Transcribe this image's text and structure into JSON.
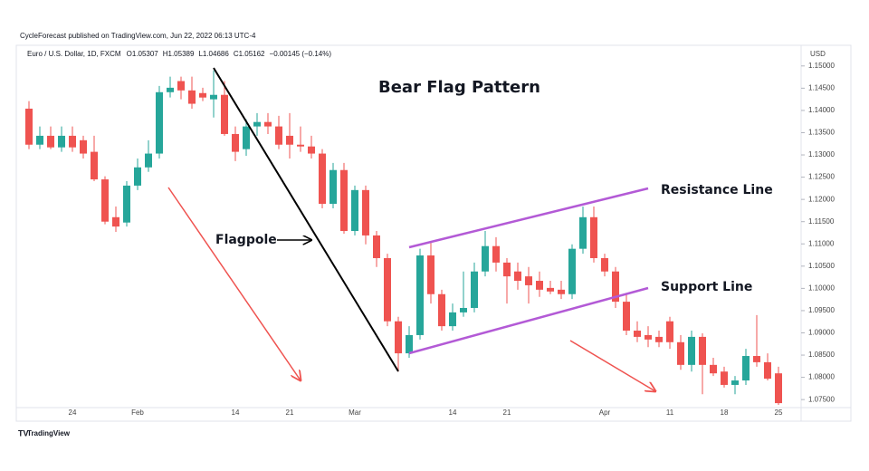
{
  "chart_data": {
    "type": "candlestick",
    "header": "CycleForecast published on TradingView.com, Jun 22, 2022 06:13 UTC-4",
    "symbol": "Euro / U.S. Dollar, 1D, FXCM",
    "ohlc_info": [
      "O1.05307",
      "H1.05389",
      "L1.04686",
      "C1.05162",
      "−0.00145 (−0.14%)"
    ],
    "currency": "USD",
    "title": "Bear Flag Pattern",
    "annotations": [
      "Flagpole",
      "Resistance Line",
      "Support Line"
    ],
    "footer": "TradingView",
    "up_color": "#26a69a",
    "down_color": "#ef5350",
    "grid": false,
    "categories": [
      null,
      null,
      null,
      null,
      "24",
      null,
      null,
      null,
      null,
      null,
      "Feb",
      null,
      null,
      null,
      null,
      null,
      null,
      null,
      null,
      "14",
      null,
      null,
      null,
      null,
      "21",
      null,
      null,
      null,
      null,
      null,
      "Mar",
      null,
      null,
      null,
      null,
      null,
      null,
      null,
      null,
      "14",
      null,
      null,
      null,
      null,
      "21",
      null,
      null,
      null,
      null,
      null,
      null,
      null,
      null,
      "Apr",
      null,
      null,
      null,
      null,
      null,
      "11",
      null,
      null,
      null,
      null,
      "18",
      null,
      null,
      null,
      null,
      "25"
    ],
    "open": [
      1.1404,
      1.1323,
      1.1343,
      1.1317,
      1.1343,
      1.1333,
      1.1307,
      1.1245,
      1.116,
      1.1148,
      1.1231,
      1.1272,
      1.1303,
      1.1441,
      1.1466,
      1.1445,
      1.1439,
      1.1425,
      1.1435,
      1.1347,
      1.1313,
      1.1364,
      1.1374,
      1.1364,
      1.1343,
      1.1323,
      1.1319,
      1.1303,
      1.119,
      1.1266,
      1.1129,
      1.1221,
      1.1119,
      1.1068,
      1.0926,
      1.0854,
      1.0895,
      1.1074,
      1.0987,
      1.0915,
      1.0946,
      1.0956,
      1.1038,
      1.1095,
      1.1058,
      1.1038,
      1.1027,
      1.1017,
      1.1001,
      1.0997,
      1.0987,
      1.1089,
      1.116,
      1.1068,
      1.1038,
      1.097,
      1.0905,
      1.0895,
      1.0891,
      1.0926,
      1.0879,
      1.0828,
      1.0891,
      1.0828,
      1.0813,
      1.0783,
      1.0793,
      1.0848,
      1.0834,
      1.0809
    ],
    "high": [
      1.1421,
      1.1364,
      1.1364,
      1.1364,
      1.1364,
      1.1343,
      1.1343,
      1.1252,
      1.1184,
      1.1241,
      1.1292,
      1.1333,
      1.1455,
      1.1476,
      1.1476,
      1.1476,
      1.1451,
      1.149,
      1.1466,
      1.1364,
      1.138,
      1.1394,
      1.1394,
      1.1388,
      1.1394,
      1.1364,
      1.1343,
      1.1313,
      1.1282,
      1.1282,
      1.1231,
      1.1231,
      1.1129,
      1.1078,
      1.0936,
      1.0915,
      1.1089,
      1.1103,
      1.0997,
      1.0966,
      1.1038,
      1.1058,
      1.1129,
      1.1115,
      1.1068,
      1.1058,
      1.1048,
      1.1038,
      1.1017,
      1.1017,
      1.1099,
      1.1184,
      1.1184,
      1.1078,
      1.1048,
      1.0987,
      1.0926,
      1.0915,
      1.0905,
      1.0936,
      1.0895,
      1.0905,
      1.0899,
      1.0844,
      1.0824,
      1.0803,
      1.0864,
      1.094,
      1.0854,
      1.0824
    ],
    "low": [
      1.1313,
      1.1313,
      1.1313,
      1.1307,
      1.1307,
      1.1292,
      1.1241,
      1.1144,
      1.1127,
      1.1139,
      1.1221,
      1.1262,
      1.1292,
      1.1429,
      1.1425,
      1.1404,
      1.1421,
      1.1384,
      1.1343,
      1.1286,
      1.1298,
      1.1343,
      1.1347,
      1.1313,
      1.1292,
      1.1307,
      1.1292,
      1.118,
      1.118,
      1.1123,
      1.1119,
      1.1099,
      1.1048,
      1.0915,
      1.0813,
      1.0844,
      1.0885,
      1.0966,
      1.0905,
      1.0905,
      1.0936,
      1.0946,
      1.1027,
      1.1038,
      1.0966,
      1.0997,
      1.0966,
      1.0981,
      1.0987,
      1.0976,
      1.0976,
      1.1078,
      1.1058,
      1.1027,
      1.0956,
      1.0895,
      1.0879,
      1.0868,
      1.0868,
      1.0864,
      1.0817,
      1.0813,
      1.0762,
      1.0803,
      1.0777,
      1.0762,
      1.0783,
      1.0824,
      1.0793,
      1.0738
    ],
    "close": [
      1.1323,
      1.1343,
      1.1317,
      1.1343,
      1.1317,
      1.1303,
      1.1245,
      1.115,
      1.1139,
      1.1231,
      1.1272,
      1.1303,
      1.1441,
      1.1451,
      1.1445,
      1.1415,
      1.1429,
      1.1435,
      1.1347,
      1.1307,
      1.1364,
      1.1374,
      1.1364,
      1.1323,
      1.1323,
      1.1319,
      1.1303,
      1.119,
      1.1266,
      1.1129,
      1.1221,
      1.1119,
      1.1068,
      1.0926,
      1.0854,
      1.0895,
      1.1074,
      1.0987,
      1.0915,
      1.0946,
      1.0956,
      1.1038,
      1.1095,
      1.1058,
      1.1027,
      1.1017,
      1.1007,
      1.0997,
      1.0993,
      1.0987,
      1.1089,
      1.116,
      1.1068,
      1.1038,
      1.097,
      1.0905,
      1.0891,
      1.0885,
      1.0879,
      1.0879,
      1.0828,
      1.0891,
      1.0828,
      1.0809,
      1.0783,
      1.0793,
      1.0848,
      1.0834,
      1.0797,
      1.0742
    ],
    "ylim": [
      1.0732,
      1.1522
    ],
    "yticks": [
      {
        "value": 1.075,
        "label": "1.07500"
      },
      {
        "value": 1.08,
        "label": "1.08000"
      },
      {
        "value": 1.085,
        "label": "1.08500"
      },
      {
        "value": 1.09,
        "label": "1.09000"
      },
      {
        "value": 1.095,
        "label": "1.09500"
      },
      {
        "value": 1.1,
        "label": "1.10000"
      },
      {
        "value": 1.105,
        "label": "1.10500"
      },
      {
        "value": 1.11,
        "label": "1.11000"
      },
      {
        "value": 1.115,
        "label": "1.11500"
      },
      {
        "value": 1.12,
        "label": "1.12000"
      },
      {
        "value": 1.125,
        "label": "1.12500"
      },
      {
        "value": 1.13,
        "label": "1.13000"
      },
      {
        "value": 1.135,
        "label": "1.13500"
      },
      {
        "value": 1.14,
        "label": "1.14000"
      },
      {
        "value": 1.145,
        "label": "1.14500"
      },
      {
        "value": 1.15,
        "label": "1.15000"
      }
    ]
  }
}
